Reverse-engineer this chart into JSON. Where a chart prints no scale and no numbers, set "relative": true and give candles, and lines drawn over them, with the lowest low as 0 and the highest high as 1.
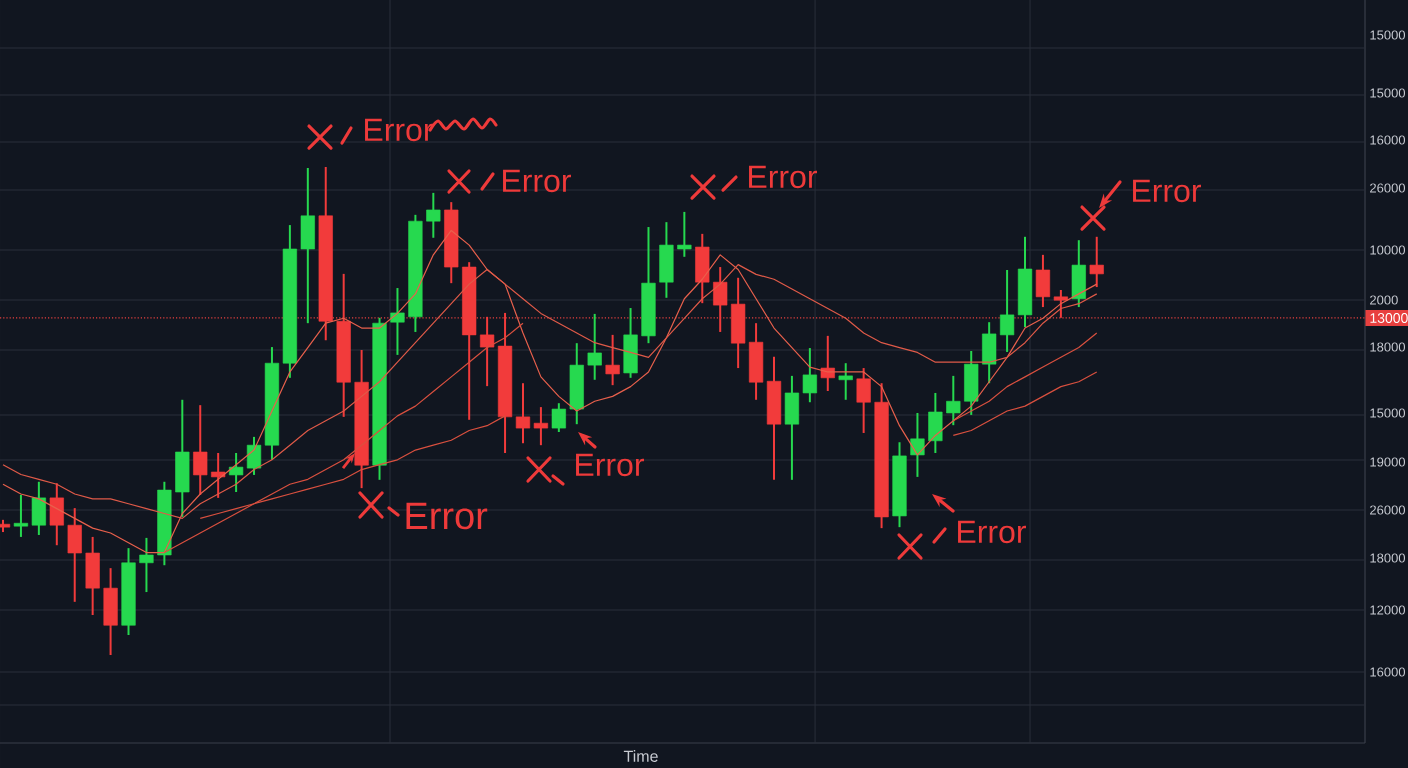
{
  "chart_data": {
    "type": "candlestick",
    "relative": true,
    "categories": [
      null,
      null,
      null,
      null,
      null,
      null,
      null,
      null,
      null,
      null,
      null,
      null,
      null,
      null,
      null,
      null,
      null,
      null,
      null,
      null,
      null,
      null,
      null,
      null,
      null,
      null,
      null,
      null,
      null,
      null,
      null,
      null,
      null,
      null,
      null,
      null,
      null,
      null,
      null,
      null,
      null,
      null,
      null,
      null,
      null,
      null,
      null,
      null,
      null,
      null,
      null,
      null,
      null,
      null,
      null,
      null,
      null,
      null,
      null,
      null,
      null,
      null
    ],
    "ohlc": [
      [
        0.268,
        0.277,
        0.252,
        0.262
      ],
      [
        0.264,
        0.328,
        0.242,
        0.27
      ],
      [
        0.266,
        0.355,
        0.246,
        0.322
      ],
      [
        0.322,
        0.352,
        0.225,
        0.266
      ],
      [
        0.266,
        0.301,
        0.109,
        0.209
      ],
      [
        0.209,
        0.242,
        0.082,
        0.137
      ],
      [
        0.137,
        0.178,
        0,
        0.061
      ],
      [
        0.061,
        0.219,
        0.041,
        0.189
      ],
      [
        0.189,
        0.24,
        0.129,
        0.205
      ],
      [
        0.205,
        0.355,
        0.184,
        0.338
      ],
      [
        0.334,
        0.523,
        0.283,
        0.416
      ],
      [
        0.416,
        0.512,
        0.328,
        0.369
      ],
      [
        0.375,
        0.414,
        0.322,
        0.365
      ],
      [
        0.369,
        0.414,
        0.334,
        0.385
      ],
      [
        0.383,
        0.447,
        0.369,
        0.43
      ],
      [
        0.43,
        0.631,
        0.4,
        0.598
      ],
      [
        0.598,
        0.881,
        0.568,
        0.832
      ],
      [
        0.832,
        0.998,
        0.68,
        0.9
      ],
      [
        0.9,
        1,
        0.645,
        0.684
      ],
      [
        0.684,
        0.781,
        0.488,
        0.559
      ],
      [
        0.559,
        0.625,
        0.342,
        0.389
      ],
      [
        0.389,
        0.691,
        0.359,
        0.68
      ],
      [
        0.682,
        0.752,
        0.615,
        0.701
      ],
      [
        0.693,
        0.902,
        0.662,
        0.889
      ],
      [
        0.889,
        0.947,
        0.855,
        0.912
      ],
      [
        0.912,
        0.928,
        0.762,
        0.795
      ],
      [
        0.795,
        0.805,
        0.482,
        0.656
      ],
      [
        0.656,
        0.693,
        0.551,
        0.631
      ],
      [
        0.633,
        0.701,
        0.414,
        0.488
      ],
      [
        0.488,
        0.557,
        0.434,
        0.465
      ],
      [
        0.475,
        0.508,
        0.43,
        0.465
      ],
      [
        0.465,
        0.516,
        0.457,
        0.504
      ],
      [
        0.504,
        0.639,
        0.473,
        0.594
      ],
      [
        0.594,
        0.699,
        0.564,
        0.619
      ],
      [
        0.594,
        0.656,
        0.553,
        0.576
      ],
      [
        0.578,
        0.711,
        0.568,
        0.656
      ],
      [
        0.654,
        0.877,
        0.639,
        0.762
      ],
      [
        0.764,
        0.887,
        0.732,
        0.84
      ],
      [
        0.832,
        0.908,
        0.816,
        0.84
      ],
      [
        0.836,
        0.863,
        0.721,
        0.764
      ],
      [
        0.764,
        0.795,
        0.662,
        0.717
      ],
      [
        0.719,
        0.773,
        0.588,
        0.639
      ],
      [
        0.641,
        0.68,
        0.523,
        0.559
      ],
      [
        0.561,
        0.611,
        0.359,
        0.473
      ],
      [
        0.473,
        0.572,
        0.359,
        0.537
      ],
      [
        0.537,
        0.629,
        0.518,
        0.574
      ],
      [
        0.588,
        0.654,
        0.541,
        0.568
      ],
      [
        0.564,
        0.598,
        0.523,
        0.572
      ],
      [
        0.566,
        0.588,
        0.455,
        0.518
      ],
      [
        0.518,
        0.557,
        0.26,
        0.283
      ],
      [
        0.285,
        0.436,
        0.262,
        0.408
      ],
      [
        0.41,
        0.496,
        0.365,
        0.443
      ],
      [
        0.439,
        0.537,
        0.414,
        0.498
      ],
      [
        0.496,
        0.572,
        0.471,
        0.52
      ],
      [
        0.52,
        0.623,
        0.492,
        0.596
      ],
      [
        0.596,
        0.682,
        0.557,
        0.658
      ],
      [
        0.656,
        0.789,
        0.621,
        0.697
      ],
      [
        0.697,
        0.857,
        0.672,
        0.791
      ],
      [
        0.789,
        0.82,
        0.713,
        0.734
      ],
      [
        0.734,
        0.748,
        0.691,
        0.727
      ],
      [
        0.73,
        0.85,
        0.713,
        0.799
      ],
      [
        0.799,
        0.857,
        0.754,
        0.781
      ]
    ],
    "colors": [
      "#f23b3b",
      "#26d94f",
      "#26d94f",
      "#f23b3b",
      "#f23b3b",
      "#f23b3b",
      "#f23b3b",
      "#26d94f",
      "#26d94f",
      "#26d94f",
      "#26d94f",
      "#f23b3b",
      "#f23b3b",
      "#26d94f",
      "#26d94f",
      "#26d94f",
      "#26d94f",
      "#26d94f",
      "#f23b3b",
      "#f23b3b",
      "#f23b3b",
      "#26d94f",
      "#26d94f",
      "#26d94f",
      "#26d94f",
      "#f23b3b",
      "#f23b3b",
      "#f23b3b",
      "#f23b3b",
      "#f23b3b",
      "#f23b3b",
      "#26d94f",
      "#26d94f",
      "#26d94f",
      "#f23b3b",
      "#26d94f",
      "#26d94f",
      "#26d94f",
      "#26d94f",
      "#f23b3b",
      "#f23b3b",
      "#f23b3b",
      "#f23b3b",
      "#f23b3b",
      "#26d94f",
      "#26d94f",
      "#f23b3b",
      "#26d94f",
      "#f23b3b",
      "#f23b3b",
      "#26d94f",
      "#26d94f",
      "#26d94f",
      "#26d94f",
      "#26d94f",
      "#26d94f",
      "#26d94f",
      "#26d94f",
      "#f23b3b",
      "#f23b3b",
      "#26d94f",
      "#f23b3b"
    ],
    "series": [
      {
        "type": "line",
        "color": "#e8604c",
        "values": [
          0.35,
          0.33,
          0.32,
          0.3,
          0.28,
          0.26,
          0.25,
          0.23,
          0.21,
          0.21,
          0.29,
          0.33,
          0.36,
          0.39,
          0.42,
          0.5,
          0.58,
          0.63,
          0.68,
          0.69,
          0.67,
          0.67,
          0.7,
          0.74,
          0.82,
          0.87,
          0.84,
          0.79,
          0.76,
          0.66,
          0.57,
          0.53,
          0.5,
          0.52,
          0.53,
          0.55,
          0.58,
          0.65,
          0.73,
          0.77,
          0.82,
          0.79,
          0.73,
          0.67,
          0.63,
          0.59,
          0.58,
          0.58,
          0.58,
          0.55,
          0.47,
          0.41,
          0.45,
          0.48,
          0.51,
          0.56,
          0.61,
          0.67,
          0.69,
          0.72,
          0.74,
          0.76
        ]
      },
      {
        "type": "line",
        "color": "#e05a48",
        "values": [
          0.39,
          0.37,
          0.36,
          0.35,
          0.33,
          0.32,
          0.32,
          0.31,
          0.3,
          0.29,
          0.28,
          0.31,
          0.33,
          0.35,
          0.38,
          0.4,
          0.43,
          0.46,
          0.48,
          0.5,
          0.53,
          0.56,
          0.6,
          0.64,
          0.68,
          0.72,
          0.76,
          0.79,
          0.76,
          0.73,
          0.7,
          0.68,
          0.66,
          0.64,
          0.63,
          0.62,
          0.61,
          0.65,
          0.69,
          0.73,
          0.76,
          0.8,
          0.78,
          0.77,
          0.75,
          0.73,
          0.71,
          0.69,
          0.66,
          0.64,
          0.63,
          0.62,
          0.6,
          0.6,
          0.6,
          0.6,
          0.61,
          0.64,
          0.68,
          0.71,
          0.72,
          0.74
        ]
      },
      {
        "type": "line",
        "color": "#d9503f",
        "values": [
          null,
          null,
          null,
          null,
          null,
          null,
          null,
          null,
          null,
          0.21,
          0.23,
          0.25,
          0.27,
          0.29,
          0.31,
          0.33,
          0.35,
          0.36,
          0.38,
          0.4,
          0.43,
          0.46,
          0.49,
          0.51,
          0.54,
          0.57,
          0.6,
          0.63,
          0.65,
          0.68,
          null,
          null,
          null,
          null,
          null,
          null,
          null,
          null,
          null,
          null,
          null,
          null,
          null,
          null,
          null,
          null,
          null,
          null,
          null,
          null,
          null,
          null,
          null,
          0.48,
          0.5,
          0.52,
          0.55,
          0.57,
          0.59,
          0.61,
          0.63,
          0.66
        ]
      },
      {
        "type": "line",
        "color": "#d9503f",
        "values": [
          null,
          null,
          null,
          null,
          null,
          null,
          null,
          null,
          null,
          null,
          null,
          0.28,
          0.29,
          0.3,
          0.31,
          0.32,
          0.33,
          0.34,
          0.35,
          0.36,
          0.38,
          0.39,
          0.4,
          0.42,
          0.43,
          0.44,
          0.46,
          0.47,
          0.49,
          null,
          null,
          null,
          null,
          null,
          null,
          null,
          null,
          null,
          null,
          null,
          null,
          null,
          null,
          null,
          null,
          null,
          null,
          null,
          null,
          null,
          null,
          null,
          null,
          0.45,
          0.46,
          0.48,
          0.5,
          0.51,
          0.53,
          0.55,
          0.56,
          0.58
        ]
      }
    ],
    "ref_lines": [
      {
        "axis": "y",
        "value": 0.691,
        "color": "#e8403f",
        "line_style": "dotted"
      }
    ],
    "grid": true,
    "annotations": [
      "Error",
      "Error",
      "Error",
      "Error",
      "Error",
      "Error",
      "Error",
      "15000",
      "15000",
      "16000",
      "26000",
      "10000",
      "2000",
      "13000",
      "18000",
      "15000",
      "19000",
      "26000",
      "18000",
      "12000",
      "16000",
      "Time"
    ]
  }
}
